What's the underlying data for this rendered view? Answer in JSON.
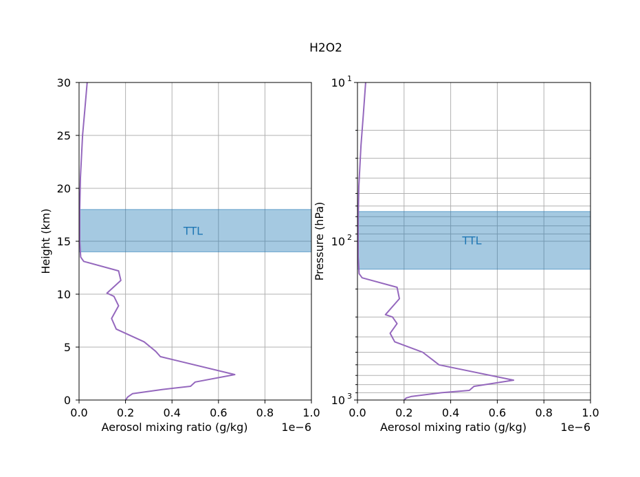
{
  "figure": {
    "suptitle": "H2O2",
    "colors": {
      "line": "#9467bd",
      "band_fill": "#1f77b4",
      "band_text": "#1f77b4",
      "grid": "#b0b0b0"
    }
  },
  "chart_data": [
    {
      "type": "line",
      "xlabel": "Aerosol mixing ratio (g/kg)",
      "ylabel": "Height (km)",
      "x_offset_label": "1e−6",
      "xlim": [
        0.0,
        1.0
      ],
      "ylim": [
        0,
        30
      ],
      "xticks": [
        "0.0",
        "0.2",
        "0.4",
        "0.6",
        "0.8",
        "1.0"
      ],
      "yticks": [
        "0",
        "5",
        "10",
        "15",
        "20",
        "25",
        "30"
      ],
      "grid": true,
      "band": {
        "label": "TTL",
        "y_from": 14,
        "y_to": 18
      },
      "series": [
        {
          "x": [
            0.2,
            0.21,
            0.23,
            0.36,
            0.48,
            0.5,
            0.67,
            0.35,
            0.33,
            0.28,
            0.16,
            0.14,
            0.17,
            0.15,
            0.12,
            0.18,
            0.17,
            0.02,
            0.007,
            0.003,
            0.003,
            0.006,
            0.015,
            0.025,
            0.035
          ],
          "y": [
            0,
            0.3,
            0.6,
            1.0,
            1.3,
            1.7,
            2.4,
            4.1,
            4.6,
            5.5,
            6.7,
            7.7,
            8.9,
            9.8,
            10.1,
            11.3,
            12.2,
            13.1,
            13.5,
            15.0,
            18.0,
            21.0,
            25.0,
            27.5,
            30.0
          ]
        }
      ]
    },
    {
      "type": "line",
      "xlabel": "Aerosol mixing ratio (g/kg)",
      "ylabel": "Pressure (hPa)",
      "x_offset_label": "1e−6",
      "xlim": [
        0.0,
        1.0
      ],
      "ylim": [
        1000,
        10
      ],
      "y_scale": "log",
      "xticks": [
        "0.0",
        "0.2",
        "0.4",
        "0.6",
        "0.8",
        "1.0"
      ],
      "yticks": [
        {
          "base": "10",
          "exp": "1"
        },
        {
          "base": "10",
          "exp": "2"
        },
        {
          "base": "10",
          "exp": "3"
        }
      ],
      "grid": true,
      "band": {
        "label": "TTL",
        "y_from": 65,
        "y_to": 150
      },
      "series": [
        {
          "x": [
            0.2,
            0.21,
            0.23,
            0.36,
            0.48,
            0.5,
            0.67,
            0.35,
            0.33,
            0.28,
            0.16,
            0.14,
            0.17,
            0.15,
            0.12,
            0.18,
            0.17,
            0.02,
            0.007,
            0.003,
            0.003,
            0.006,
            0.015,
            0.025,
            0.035
          ],
          "y": [
            1000,
            970,
            950,
            900,
            870,
            820,
            750,
            600,
            570,
            500,
            430,
            380,
            330,
            300,
            290,
            230,
            195,
            170,
            160,
            125,
            75,
            45,
            25,
            16,
            10
          ]
        }
      ]
    }
  ]
}
